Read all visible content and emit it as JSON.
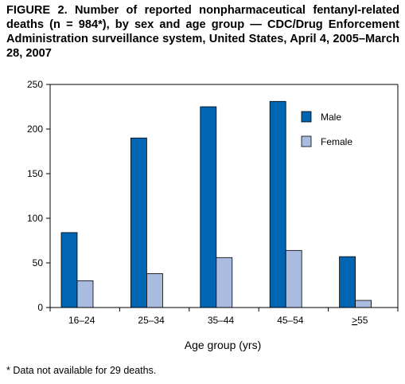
{
  "title": "FIGURE 2. Number of reported nonpharmaceutical fentanyl-related deaths (n = 984*), by sex and age group — CDC/Drug Enforcement Administration surveillance system, United States, April 4, 2005–March 28, 2007",
  "footnote": "* Data not available for 29 deaths.",
  "colors": {
    "male": "#0066b3",
    "female": "#a9bcdf",
    "axis": "#000000"
  },
  "chart_data": {
    "type": "bar",
    "xlabel": "Age group (yrs)",
    "ylabel": "",
    "categories": [
      "16–24",
      "25–34",
      "35–44",
      "45–54",
      ">55"
    ],
    "category_underline_prefix": [
      false,
      false,
      false,
      false,
      true
    ],
    "series": [
      {
        "name": "Male",
        "values": [
          84,
          190,
          225,
          231,
          57
        ]
      },
      {
        "name": "Female",
        "values": [
          30,
          38,
          56,
          64,
          8
        ]
      }
    ],
    "ylim": [
      0,
      250
    ],
    "yticks": [
      0,
      50,
      100,
      150,
      200,
      250
    ],
    "grid": false,
    "legend_placement": "top-right"
  }
}
